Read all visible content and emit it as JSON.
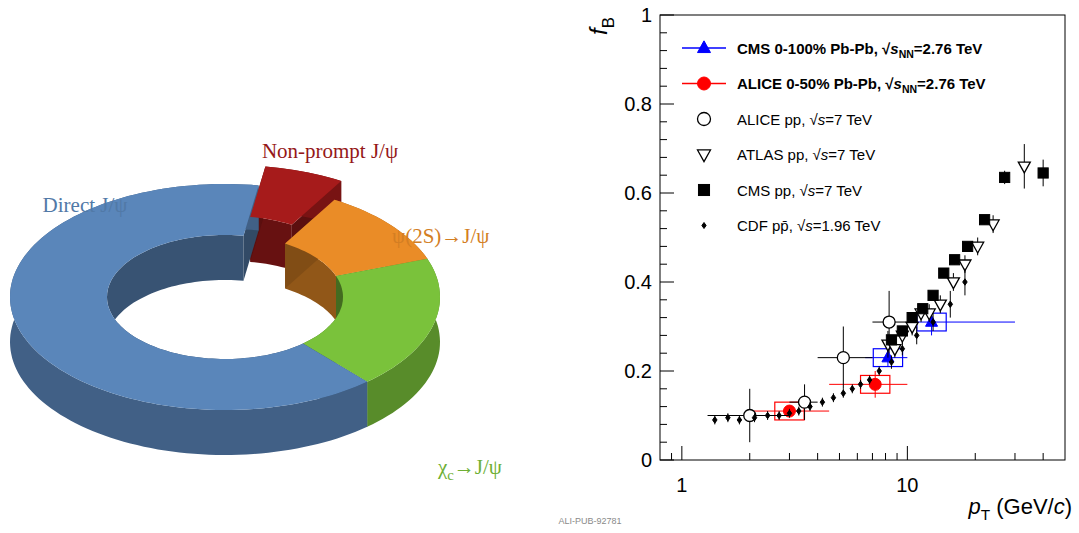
{
  "chart_data": [
    {
      "type": "donut",
      "categories": [
        "Non-prompt J/ψ",
        "ψ(2S)→J/ψ",
        "χc→J/ψ",
        "Direct J/ψ"
      ],
      "values": [
        6,
        11,
        19,
        64
      ],
      "colors": [
        "#a61b1b",
        "#ea8c27",
        "#7ac23b",
        "#5a86ba"
      ]
    },
    {
      "type": "scatter",
      "x_label": "pT (GeV/c)",
      "y_label": "fB",
      "annotation": "ALI-PUB-92781",
      "log": "x",
      "grid": false,
      "legend": "upper left",
      "xlim": [
        0.8,
        50
      ],
      "xticks": [
        1,
        10
      ],
      "ylim": [
        0,
        1
      ],
      "yticks": [
        0,
        0.2,
        0.4,
        0.6,
        0.8,
        1
      ],
      "series": [
        {
          "name": "CMS 0-100% Pb-Pb, √sNN=2.76 TeV",
          "color": "#0000ff",
          "marker": "triangle",
          "x": [
            8.2,
            12.8
          ],
          "values": [
            0.23,
            0.31
          ],
          "yerr": [
            0.02,
            0.03
          ],
          "syst": [
            0.02,
            0.02
          ],
          "x_low": [
            6.5,
            10
          ],
          "x_high": [
            10,
            30
          ]
        },
        {
          "name": "ALICE 0-50% Pb-Pb, √sNN=2.76 TeV",
          "color": "#ff0000",
          "marker": "circle",
          "x": [
            3.0,
            7.2
          ],
          "values": [
            0.11,
            0.17
          ],
          "yerr": [
            0.01,
            0.03
          ],
          "syst": [
            0.02,
            0.02
          ],
          "x_low": [
            2,
            4.5
          ],
          "x_high": [
            4.5,
            10
          ]
        },
        {
          "name": "ALICE pp, √s=7 TeV",
          "color": "#000000",
          "marker": "open-circle",
          "x": [
            2.0,
            3.5,
            5.2,
            8.3
          ],
          "values": [
            0.1,
            0.13,
            0.23,
            0.31
          ],
          "yerr": [
            0.06,
            0.04,
            0.07,
            0.07
          ],
          "x_low": [
            1.3,
            3,
            4,
            7
          ],
          "x_high": [
            3,
            4,
            7,
            10
          ]
        },
        {
          "name": "ATLAS pp, √s=7 TeV",
          "color": "#000000",
          "marker": "open-triangle-down",
          "x": [
            8.2,
            8.8,
            9.5,
            10.5,
            11.5,
            12.5,
            14,
            16,
            18,
            20.5,
            24,
            33
          ],
          "values": [
            0.26,
            0.25,
            0.28,
            0.3,
            0.33,
            0.33,
            0.35,
            0.4,
            0.44,
            0.48,
            0.53,
            0.66
          ],
          "yerr": [
            0.03,
            0.02,
            0.02,
            0.02,
            0.02,
            0.02,
            0.02,
            0.02,
            0.02,
            0.02,
            0.02,
            0.05
          ]
        },
        {
          "name": "CMS pp, √s=7 TeV",
          "color": "#000000",
          "marker": "square",
          "x": [
            8.5,
            9.5,
            10.5,
            11.7,
            13,
            14.5,
            16.2,
            18.5,
            22,
            27,
            40
          ],
          "values": [
            0.27,
            0.29,
            0.32,
            0.34,
            0.37,
            0.42,
            0.45,
            0.48,
            0.54,
            0.635,
            0.645
          ],
          "yerr": [
            0.01,
            0.01,
            0.01,
            0.01,
            0.01,
            0.01,
            0.01,
            0.01,
            0.01,
            0.015,
            0.03
          ]
        },
        {
          "name": "CDF pp̄, √s=1.96 TeV",
          "color": "#000000",
          "marker": "diamond",
          "x": [
            1.4,
            1.6,
            1.8,
            2.1,
            2.4,
            2.7,
            3.0,
            3.3,
            3.7,
            4.2,
            4.7,
            5.2,
            5.7,
            6.2,
            6.8,
            7.5,
            8.5,
            9.5,
            11,
            13,
            15.5,
            18
          ],
          "values": [
            0.09,
            0.095,
            0.09,
            0.095,
            0.1,
            0.1,
            0.105,
            0.11,
            0.12,
            0.13,
            0.14,
            0.15,
            0.16,
            0.17,
            0.18,
            0.2,
            0.22,
            0.25,
            0.28,
            0.31,
            0.35,
            0.4
          ],
          "yerr": [
            0.01,
            0.01,
            0.01,
            0.01,
            0.01,
            0.01,
            0.01,
            0.01,
            0.01,
            0.01,
            0.01,
            0.01,
            0.01,
            0.01,
            0.01,
            0.01,
            0.015,
            0.015,
            0.02,
            0.02,
            0.03,
            0.03
          ]
        }
      ]
    }
  ]
}
